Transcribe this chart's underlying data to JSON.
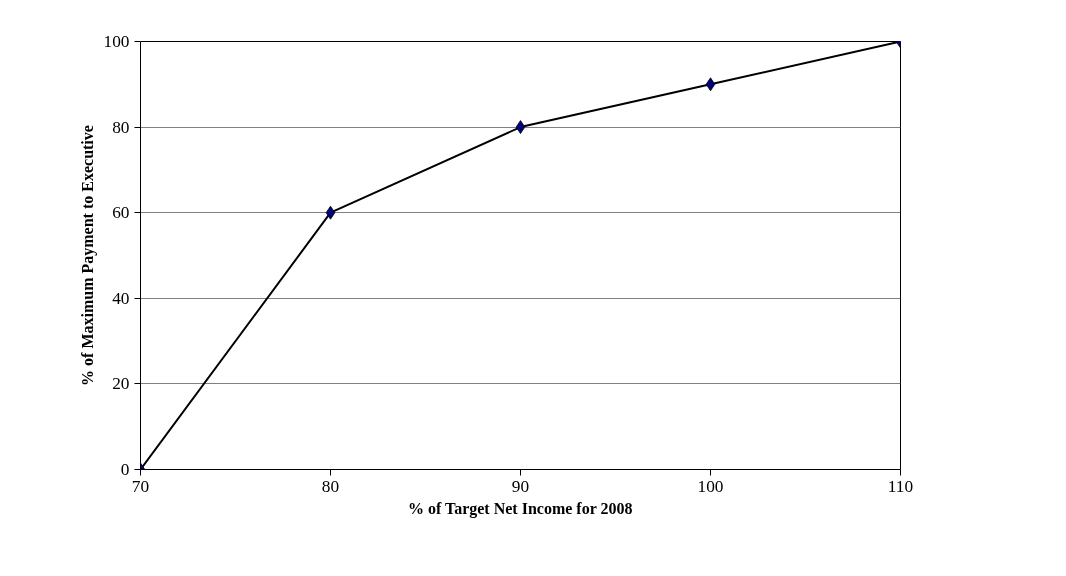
{
  "chart_data": {
    "type": "line",
    "xlabel": "% of Target Net Income for 2008",
    "ylabel": "% of Maximum Payment to Executive",
    "x": [
      70,
      80,
      90,
      100,
      110
    ],
    "series": [
      {
        "color": "#000000",
        "values": [
          0,
          60,
          80,
          90,
          100
        ]
      }
    ],
    "marker": "diamond",
    "line_style": "solid",
    "xlim": [
      70,
      110
    ],
    "xticks": [
      70,
      80,
      90,
      100,
      110
    ],
    "ylim": [
      0,
      100
    ],
    "yticks": [
      0,
      20,
      40,
      60,
      80,
      100
    ],
    "grid": "y"
  }
}
